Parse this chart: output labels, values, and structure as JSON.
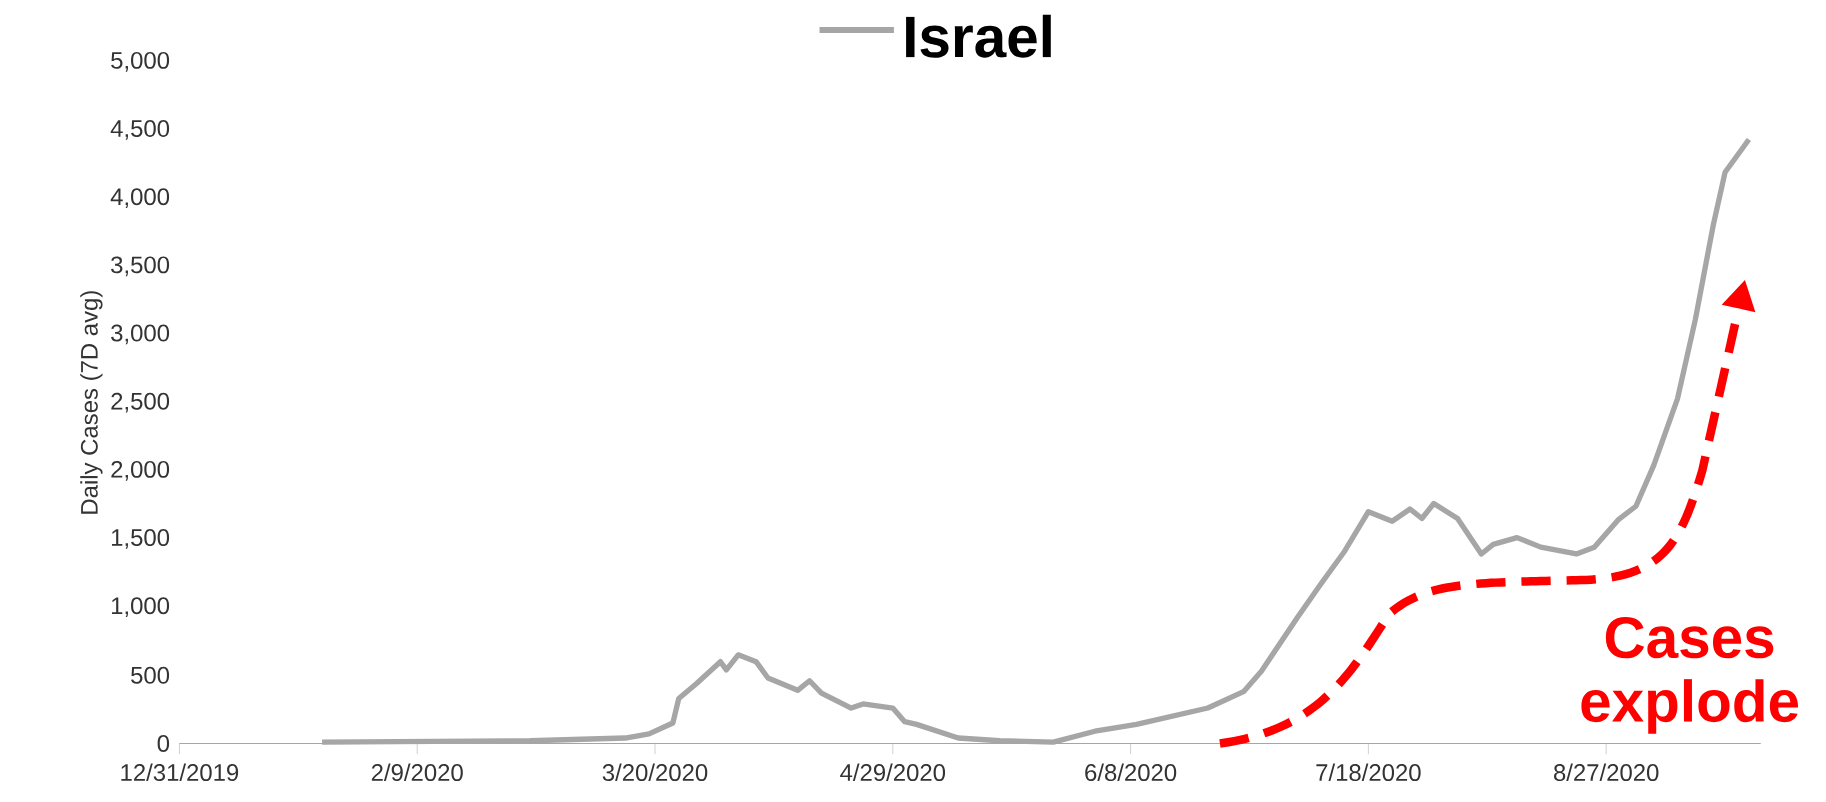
{
  "chart_data": {
    "type": "line",
    "ylabel": "Daily Cases (7D avg)",
    "legend": "top",
    "x": [
      "2020-01-24",
      "2020-02-28",
      "2020-03-15",
      "2020-03-19",
      "2020-03-23",
      "2020-03-24",
      "2020-03-27",
      "2020-03-31",
      "2020-04-01",
      "2020-04-03",
      "2020-04-06",
      "2020-04-08",
      "2020-04-13",
      "2020-04-15",
      "2020-04-17",
      "2020-04-22",
      "2020-04-24",
      "2020-04-29",
      "2020-05-01",
      "2020-05-03",
      "2020-05-10",
      "2020-05-17",
      "2020-05-26",
      "2020-06-02",
      "2020-06-09",
      "2020-06-15",
      "2020-06-21",
      "2020-06-27",
      "2020-06-30",
      "2020-07-06",
      "2020-07-10",
      "2020-07-14",
      "2020-07-18",
      "2020-07-22",
      "2020-07-25",
      "2020-07-27",
      "2020-07-29",
      "2020-08-02",
      "2020-08-06",
      "2020-08-08",
      "2020-08-12",
      "2020-08-16",
      "2020-08-22",
      "2020-08-25",
      "2020-08-29",
      "2020-09-01",
      "2020-09-04",
      "2020-09-08",
      "2020-09-11",
      "2020-09-14",
      "2020-09-16",
      "2020-09-20"
    ],
    "series": [
      {
        "name": "Israel",
        "color": "#a6a6a6",
        "values": [
          10,
          20,
          40,
          70,
          150,
          330,
          440,
          600,
          540,
          650,
          600,
          480,
          390,
          460,
          370,
          260,
          290,
          260,
          160,
          140,
          40,
          20,
          10,
          90,
          140,
          200,
          260,
          380,
          530,
          920,
          1170,
          1410,
          1700,
          1630,
          1720,
          1650,
          1760,
          1650,
          1390,
          1460,
          1510,
          1440,
          1390,
          1440,
          1640,
          1740,
          2040,
          2530,
          3110,
          3800,
          4190,
          4430
        ]
      }
    ],
    "xlim": [
      "2019-12-31",
      "2020-09-22"
    ],
    "xticks": [
      {
        "value": "2019-12-31",
        "label": "12/31/2019"
      },
      {
        "value": "2020-02-09",
        "label": "2/9/2020"
      },
      {
        "value": "2020-03-20",
        "label": "3/20/2020"
      },
      {
        "value": "2020-04-29",
        "label": "4/29/2020"
      },
      {
        "value": "2020-06-08",
        "label": "6/8/2020"
      },
      {
        "value": "2020-07-18",
        "label": "7/18/2020"
      },
      {
        "value": "2020-08-27",
        "label": "8/27/2020"
      }
    ],
    "ylim": [
      0,
      5000
    ],
    "yticks": [
      0,
      {
        "value": 500,
        "label": "500"
      },
      {
        "value": 1000,
        "label": "1,000"
      },
      {
        "value": 1500,
        "label": "1,500"
      },
      {
        "value": 2000,
        "label": "2,000"
      },
      {
        "value": 2500,
        "label": "2,500"
      },
      {
        "value": 3000,
        "label": "3,000"
      },
      {
        "value": 3500,
        "label": "3,500"
      },
      {
        "value": 4000,
        "label": "4,000"
      },
      {
        "value": 4500,
        "label": "4,500"
      },
      {
        "value": 5000,
        "label": "5,000"
      }
    ],
    "annotations": [
      "Cases explode"
    ]
  }
}
